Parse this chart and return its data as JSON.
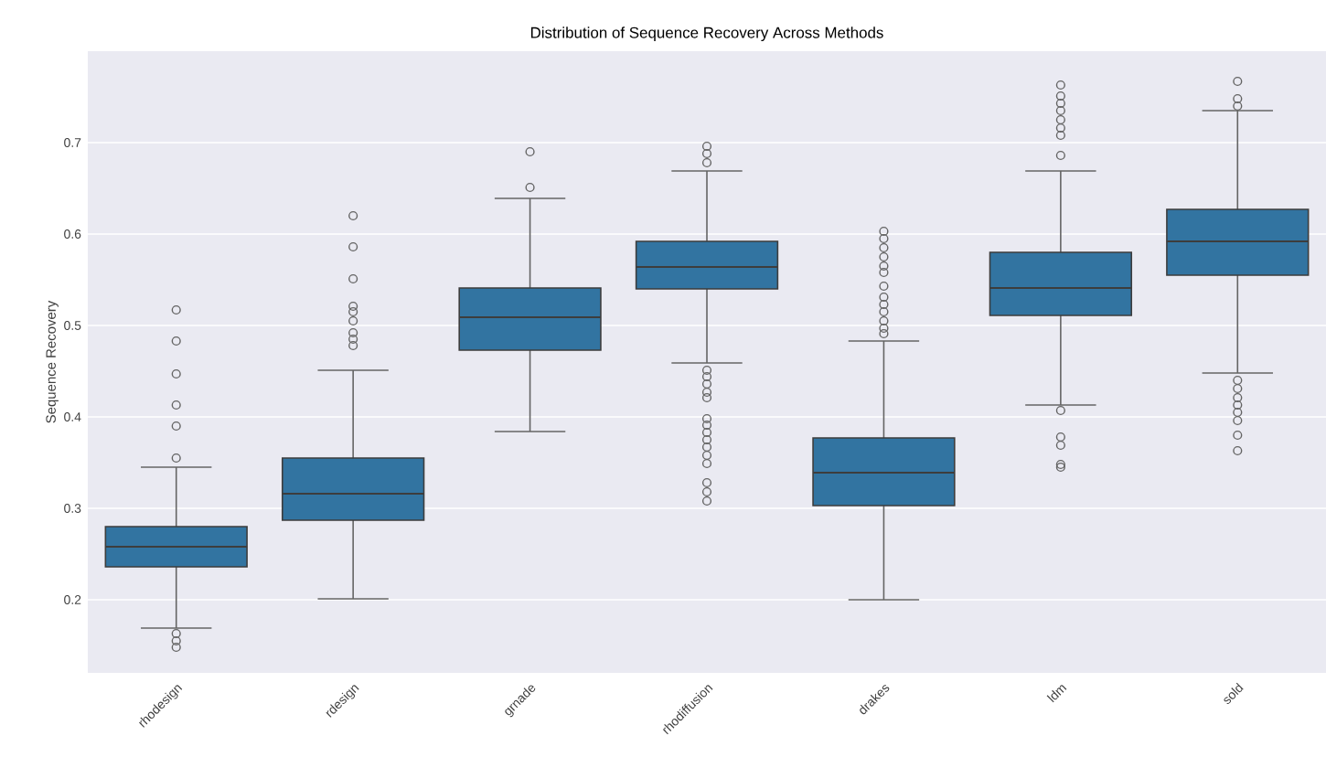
{
  "chart_data": {
    "type": "box",
    "title": "Distribution of Sequence Recovery Across Methods",
    "ylabel": "Sequence Recovery",
    "categories": [
      "rhodesign",
      "rdesign",
      "grnade",
      "rhodiffusion",
      "drakes",
      "ldm",
      "sold"
    ],
    "color": "#3274a1",
    "ylim": [
      0.12,
      0.8
    ],
    "yticks": [
      0.2,
      0.3,
      0.4,
      0.5,
      0.6,
      0.7
    ],
    "grid": "y",
    "boxes": [
      {
        "low": 0.169,
        "q1": 0.236,
        "median": 0.258,
        "q3": 0.28,
        "high": 0.345,
        "outliers": [
          0.517,
          0.483,
          0.447,
          0.413,
          0.39,
          0.355,
          0.163,
          0.155,
          0.148
        ]
      },
      {
        "low": 0.201,
        "q1": 0.287,
        "median": 0.316,
        "q3": 0.355,
        "high": 0.451,
        "outliers": [
          0.62,
          0.586,
          0.551,
          0.521,
          0.515,
          0.505,
          0.492,
          0.485,
          0.478
        ]
      },
      {
        "low": 0.384,
        "q1": 0.473,
        "median": 0.509,
        "q3": 0.541,
        "high": 0.639,
        "outliers": [
          0.69,
          0.651
        ]
      },
      {
        "low": 0.459,
        "q1": 0.54,
        "median": 0.564,
        "q3": 0.592,
        "high": 0.669,
        "outliers": [
          0.696,
          0.688,
          0.678,
          0.451,
          0.444,
          0.436,
          0.427,
          0.421,
          0.398,
          0.391,
          0.383,
          0.375,
          0.367,
          0.358,
          0.349,
          0.328,
          0.318,
          0.308
        ]
      },
      {
        "low": 0.2,
        "q1": 0.303,
        "median": 0.339,
        "q3": 0.377,
        "high": 0.483,
        "outliers": [
          0.603,
          0.595,
          0.585,
          0.575,
          0.565,
          0.558,
          0.543,
          0.531,
          0.523,
          0.515,
          0.505,
          0.497,
          0.491
        ]
      },
      {
        "low": 0.413,
        "q1": 0.511,
        "median": 0.541,
        "q3": 0.58,
        "high": 0.669,
        "outliers": [
          0.763,
          0.751,
          0.743,
          0.735,
          0.725,
          0.716,
          0.708,
          0.686,
          0.407,
          0.378,
          0.369,
          0.348,
          0.345
        ]
      },
      {
        "low": 0.448,
        "q1": 0.555,
        "median": 0.592,
        "q3": 0.627,
        "high": 0.735,
        "outliers": [
          0.767,
          0.748,
          0.74,
          0.44,
          0.431,
          0.421,
          0.413,
          0.405,
          0.396,
          0.38,
          0.363
        ]
      }
    ]
  }
}
